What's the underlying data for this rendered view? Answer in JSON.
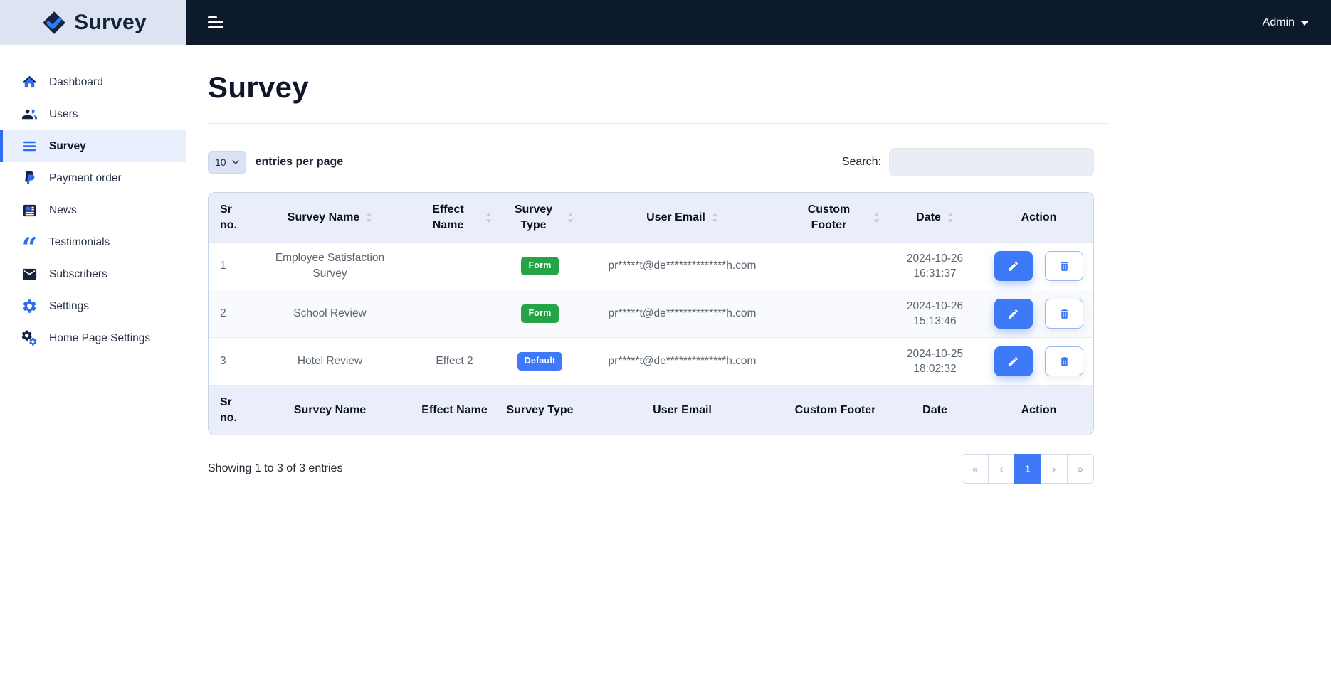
{
  "brand": {
    "logo_text": "Survey"
  },
  "topbar": {
    "admin_label": "Admin"
  },
  "sidebar": {
    "items": [
      {
        "label": "Dashboard",
        "icon": "home",
        "active": false
      },
      {
        "label": "Users",
        "icon": "users",
        "active": false
      },
      {
        "label": "Survey",
        "icon": "list",
        "active": true
      },
      {
        "label": "Payment order",
        "icon": "paypal",
        "active": false
      },
      {
        "label": "News",
        "icon": "news",
        "active": false
      },
      {
        "label": "Testimonials",
        "icon": "quote",
        "active": false
      },
      {
        "label": "Subscribers",
        "icon": "mail",
        "active": false
      },
      {
        "label": "Settings",
        "icon": "gear",
        "active": false
      },
      {
        "label": "Home Page Settings",
        "icon": "home-gear",
        "active": false
      }
    ]
  },
  "main": {
    "title": "Survey",
    "entries": {
      "value": "10",
      "label": "entries per page"
    },
    "search": {
      "label": "Search:",
      "value": ""
    },
    "table": {
      "headers": [
        {
          "label": "Sr no.",
          "sortable": false
        },
        {
          "label": "Survey Name",
          "sortable": true
        },
        {
          "label": "Effect Name",
          "sortable": true
        },
        {
          "label": "Survey Type",
          "sortable": true
        },
        {
          "label": "User Email",
          "sortable": true
        },
        {
          "label": "Custom Footer",
          "sortable": true
        },
        {
          "label": "Date",
          "sortable": true
        },
        {
          "label": "Action",
          "sortable": false
        }
      ],
      "rows": [
        {
          "sr": "1",
          "name": "Employee Satisfaction Survey",
          "effect": "",
          "type": {
            "label": "Form",
            "color": "green"
          },
          "email": "pr*****t@de**************h.com",
          "footer": "",
          "date": "2024-10-26 16:31:37"
        },
        {
          "sr": "2",
          "name": "School Review",
          "effect": "",
          "type": {
            "label": "Form",
            "color": "green"
          },
          "email": "pr*****t@de**************h.com",
          "footer": "",
          "date": "2024-10-26 15:13:46"
        },
        {
          "sr": "3",
          "name": "Hotel Review",
          "effect": "Effect 2",
          "type": {
            "label": "Default",
            "color": "blue"
          },
          "email": "pr*****t@de**************h.com",
          "footer": "",
          "date": "2024-10-25 18:02:32"
        }
      ]
    },
    "summary": "Showing 1 to 3 of 3 entries",
    "pagination": [
      {
        "label": "«",
        "active": false
      },
      {
        "label": "‹",
        "active": false
      },
      {
        "label": "1",
        "active": true
      },
      {
        "label": "›",
        "active": false
      },
      {
        "label": "»",
        "active": false
      }
    ]
  },
  "colors": {
    "accent": "#2f6bf5",
    "button_blue": "#3e79f7",
    "topbar_bg": "#0d1a2b",
    "logo_bg": "#dce4f2",
    "sidebar_active_bg": "#e9effc",
    "table_header_bg": "#e9eefa",
    "badge_green": "#27a347",
    "badge_blue": "#3e79f7"
  }
}
